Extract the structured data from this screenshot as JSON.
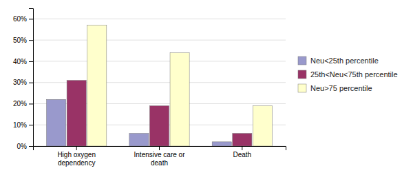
{
  "chart_data": {
    "type": "bar",
    "categories": [
      "High oxygen\ndependency",
      "Intensive care or\ndeath",
      "Death"
    ],
    "series": [
      {
        "name": "Neu<25th percentile",
        "color": "#9999cc",
        "values": [
          0.22,
          0.06,
          0.02
        ]
      },
      {
        "name": "25th<Neu<75th percentile",
        "color": "#993366",
        "values": [
          0.31,
          0.19,
          0.06
        ]
      },
      {
        "name": "Neu>75 percentile",
        "color": "#ffffcc",
        "values": [
          0.57,
          0.44,
          0.19
        ]
      }
    ],
    "ylim": [
      0,
      0.65
    ],
    "yticks": [
      {
        "value": 0.0,
        "label": "0%"
      },
      {
        "value": 0.1,
        "label": "10%"
      },
      {
        "value": 0.2,
        "label": "20%"
      },
      {
        "value": 0.3,
        "label": "30%"
      },
      {
        "value": 0.4,
        "label": "40%"
      },
      {
        "value": 0.5,
        "label": "50%"
      },
      {
        "value": 0.6,
        "label": "60%"
      }
    ],
    "grid": true,
    "legend": "right"
  }
}
